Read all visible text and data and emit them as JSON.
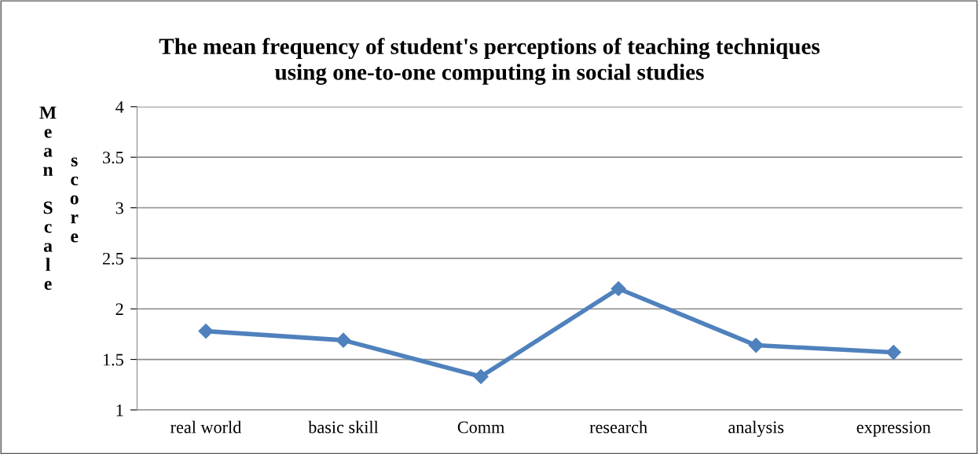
{
  "chart_data": {
    "type": "line",
    "title": "The mean frequency of student's perceptions of teaching techniques\nusing one-to-one computing in social studies",
    "ylabel": "Mean Scale score",
    "categories": [
      "real world",
      "basic skill",
      "Comm",
      "research",
      "analysis",
      "expression"
    ],
    "series": [
      {
        "color": "#4f81bd",
        "values": [
          1.78,
          1.69,
          1.33,
          2.2,
          1.64,
          1.57
        ]
      }
    ],
    "ylim": [
      1,
      4
    ],
    "yticks": [
      1,
      1.5,
      2,
      2.5,
      3,
      3.5,
      4
    ],
    "grid": "y",
    "marker": "diamond",
    "line_style": "solid",
    "legend": false
  }
}
